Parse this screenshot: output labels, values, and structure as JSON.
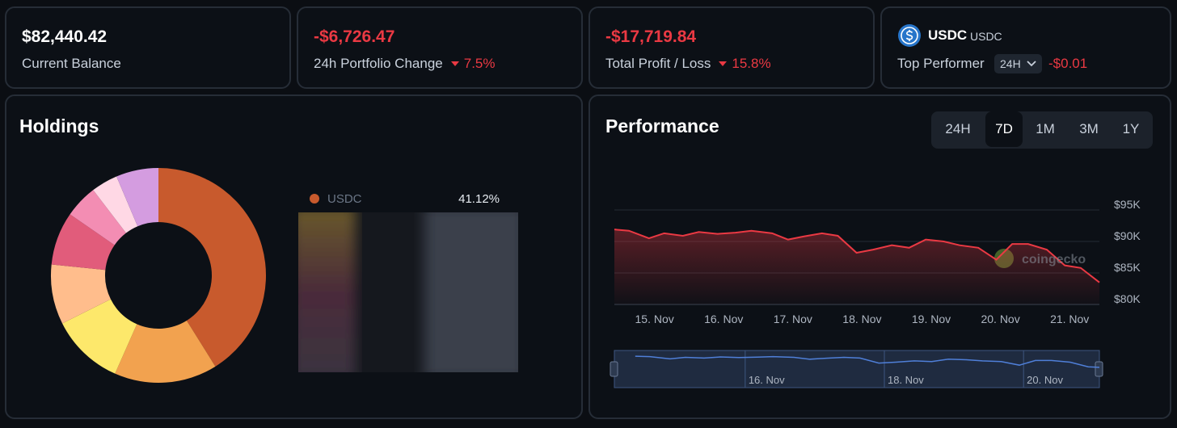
{
  "cards": [
    {
      "value": "$82,440.42",
      "label": "Current Balance"
    },
    {
      "value": "-$6,726.47",
      "label": "24h Portfolio Change",
      "change": "7.5%"
    },
    {
      "value": "-$17,719.84",
      "label": "Total Profit / Loss",
      "change": "15.8%"
    },
    {
      "coin": "USDC",
      "symbol": "USDC",
      "label": "Top Performer",
      "period": "24H",
      "value": "-$0.01"
    }
  ],
  "holdings": {
    "title": "Holdings",
    "chart": {
      "type": "pie",
      "values": [
        41.12,
        15.5,
        11,
        9,
        8,
        5,
        4,
        6.38
      ],
      "colors": [
        "#c85a2d",
        "#f2a24f",
        "#fde86b",
        "#ffbd8c",
        "#e15c7b",
        "#f38db3",
        "#ffd8e5",
        "#d49ce0"
      ]
    },
    "legend": {
      "name": "USDC",
      "value": "41.12%"
    }
  },
  "performance": {
    "title": "Performance",
    "ranges": [
      "24H",
      "7D",
      "1M",
      "3M",
      "1Y"
    ],
    "active_range": 1,
    "watermark": "coingecko",
    "chart": {
      "type": "line",
      "color": "#ea3943",
      "grid": true,
      "x": [
        14.42,
        14.63,
        14.92,
        15.14,
        15.41,
        15.64,
        15.91,
        16.17,
        16.4,
        16.7,
        16.93,
        17.16,
        17.42,
        17.65,
        17.92,
        18.16,
        18.43,
        18.68,
        18.92,
        19.18,
        19.41,
        19.68,
        19.94,
        20.17,
        20.4,
        20.67,
        20.93,
        21.16,
        21.43
      ],
      "values": [
        91900,
        91700,
        90500,
        91300,
        90900,
        91500,
        91200,
        91400,
        91700,
        91300,
        90300,
        90800,
        91300,
        90900,
        88200,
        88700,
        89400,
        89000,
        90300,
        90000,
        89400,
        89000,
        87100,
        89600,
        89600,
        88700,
        86200,
        85800,
        83500
      ],
      "xlim": [
        14.42,
        21.43
      ],
      "ylim": [
        80000,
        95000
      ],
      "xticks": [
        {
          "value": 15,
          "label": "15. Nov"
        },
        {
          "value": 16,
          "label": "16. Nov"
        },
        {
          "value": 17,
          "label": "17. Nov"
        },
        {
          "value": 18,
          "label": "18. Nov"
        },
        {
          "value": 19,
          "label": "19. Nov"
        },
        {
          "value": 20,
          "label": "20. Nov"
        },
        {
          "value": 21,
          "label": "21. Nov"
        }
      ],
      "yticks": [
        {
          "value": 80000,
          "label": "$80K"
        },
        {
          "value": 85000,
          "label": "$85K"
        },
        {
          "value": 90000,
          "label": "$90K"
        },
        {
          "value": 95000,
          "label": "$95K"
        }
      ]
    },
    "navigator": {
      "xlim": [
        14.12,
        21.09
      ],
      "ylim": [
        75000,
        95000
      ],
      "xticks": [
        {
          "value": 16,
          "label": "16. Nov"
        },
        {
          "value": 18,
          "label": "18. Nov"
        },
        {
          "value": 20,
          "label": "20. Nov"
        }
      ]
    }
  }
}
